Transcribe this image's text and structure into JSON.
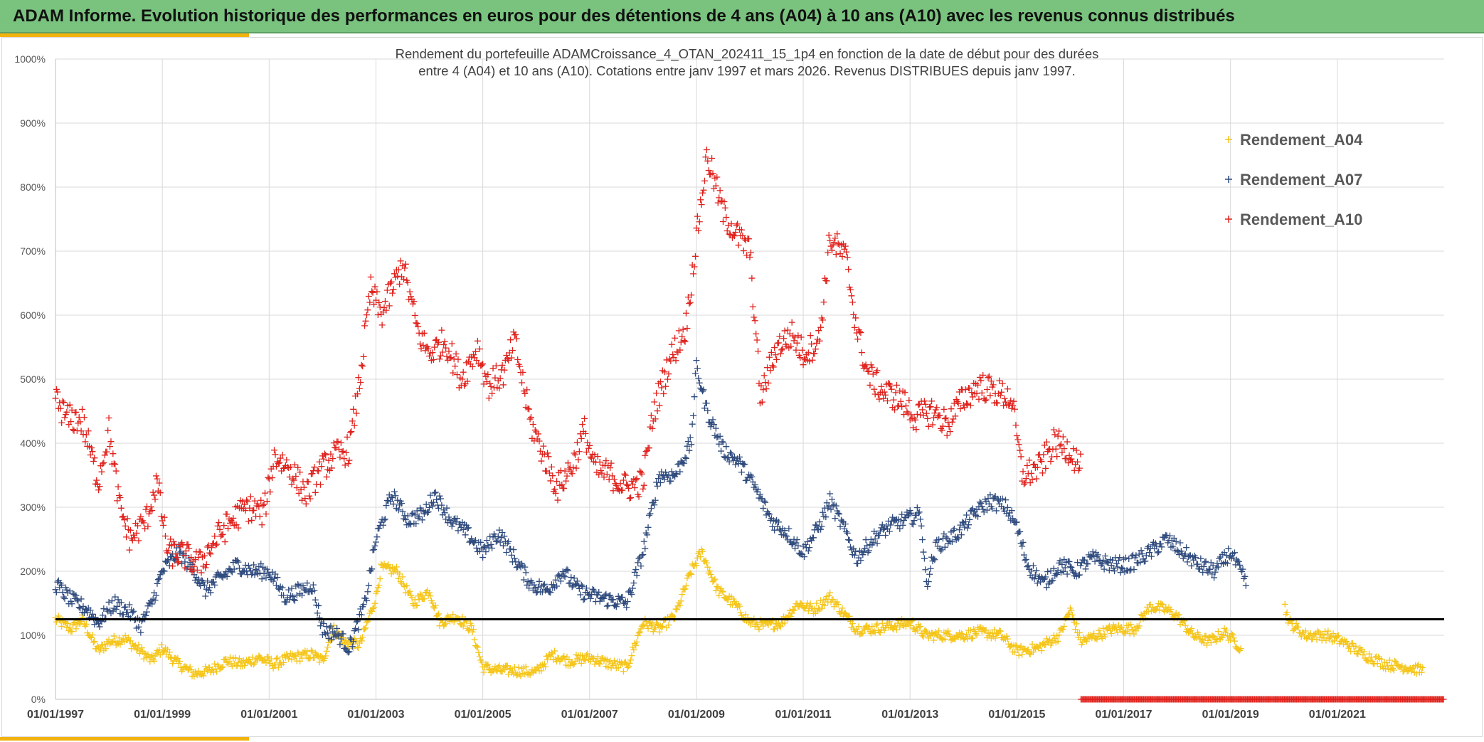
{
  "header": {
    "title": "ADAM Informe. Evolution historique des performances en euros pour des détentions de 4 ans (A04) à 10 ans (A10) avec les revenus connus distribués"
  },
  "colors": {
    "banner": "#79c37e",
    "gold": "#f2b30f",
    "a04": "#f5c518",
    "a07": "#2e4a7d",
    "a10": "#e0201b",
    "reference_line": "#000000"
  },
  "chart_data": {
    "type": "scatter",
    "title_line1": "Rendement du portefeuille ADAMCroissance_4_OTAN_202411_15_1p4  en fonction de la date de début pour des durées",
    "title_line2": "entre 4 (A04) et 10 ans (A10). Cotations entre janv 1997 et mars 2026. Revenus DISTRIBUES depuis janv 1997.",
    "xlabel": "",
    "ylabel": "",
    "x_range_years": [
      1997.0,
      2023.0
    ],
    "ylim": [
      0,
      1000
    ],
    "grid": true,
    "legend_position": "top-right",
    "y_ticks": [
      "0%",
      "100%",
      "200%",
      "300%",
      "400%",
      "500%",
      "600%",
      "700%",
      "800%",
      "900%",
      "1000%"
    ],
    "x_ticks": [
      "01/01/1997",
      "01/01/1999",
      "01/01/2001",
      "01/01/2003",
      "01/01/2005",
      "01/01/2007",
      "01/01/2009",
      "01/01/2011",
      "01/01/2013",
      "01/01/2015",
      "01/01/2017",
      "01/01/2019",
      "01/01/2021"
    ],
    "reference_line_value": 125,
    "series": [
      {
        "name": "Rendement_A04",
        "start": 1997.0,
        "end": 2022.6,
        "gap": [
          2019.2,
          2020.0
        ],
        "points": [
          [
            1997.0,
            125
          ],
          [
            1997.3,
            110
          ],
          [
            1997.5,
            125
          ],
          [
            1997.8,
            75
          ],
          [
            1998.0,
            90
          ],
          [
            1998.3,
            95
          ],
          [
            1998.6,
            75
          ],
          [
            1998.8,
            60
          ],
          [
            1999.0,
            80
          ],
          [
            1999.3,
            55
          ],
          [
            1999.6,
            40
          ],
          [
            1999.9,
            45
          ],
          [
            2000.2,
            60
          ],
          [
            2000.5,
            55
          ],
          [
            2000.8,
            65
          ],
          [
            2001.1,
            55
          ],
          [
            2001.4,
            65
          ],
          [
            2001.8,
            70
          ],
          [
            2002.0,
            60
          ],
          [
            2002.2,
            110
          ],
          [
            2002.4,
            90
          ],
          [
            2002.7,
            85
          ],
          [
            2003.0,
            160
          ],
          [
            2003.1,
            205
          ],
          [
            2003.4,
            200
          ],
          [
            2003.7,
            150
          ],
          [
            2004.0,
            170
          ],
          [
            2004.2,
            120
          ],
          [
            2004.5,
            130
          ],
          [
            2004.8,
            110
          ],
          [
            2005.0,
            50
          ],
          [
            2005.3,
            45
          ],
          [
            2005.6,
            45
          ],
          [
            2006.0,
            42
          ],
          [
            2006.3,
            70
          ],
          [
            2006.6,
            60
          ],
          [
            2007.0,
            65
          ],
          [
            2007.4,
            55
          ],
          [
            2007.7,
            50
          ],
          [
            2008.0,
            120
          ],
          [
            2008.3,
            110
          ],
          [
            2008.6,
            130
          ],
          [
            2008.9,
            200
          ],
          [
            2009.1,
            230
          ],
          [
            2009.4,
            170
          ],
          [
            2009.7,
            150
          ],
          [
            2010.0,
            120
          ],
          [
            2010.3,
            115
          ],
          [
            2010.6,
            120
          ],
          [
            2010.9,
            150
          ],
          [
            2011.2,
            140
          ],
          [
            2011.5,
            160
          ],
          [
            2011.8,
            130
          ],
          [
            2012.0,
            110
          ],
          [
            2012.3,
            110
          ],
          [
            2012.7,
            115
          ],
          [
            2013.0,
            120
          ],
          [
            2013.3,
            100
          ],
          [
            2013.7,
            100
          ],
          [
            2014.0,
            100
          ],
          [
            2014.3,
            105
          ],
          [
            2014.7,
            100
          ],
          [
            2015.0,
            75
          ],
          [
            2015.4,
            80
          ],
          [
            2015.8,
            100
          ],
          [
            2016.0,
            140
          ],
          [
            2016.2,
            90
          ],
          [
            2016.5,
            100
          ],
          [
            2016.8,
            110
          ],
          [
            2017.2,
            110
          ],
          [
            2017.5,
            145
          ],
          [
            2017.8,
            140
          ],
          [
            2018.0,
            130
          ],
          [
            2018.3,
            100
          ],
          [
            2018.6,
            90
          ],
          [
            2018.9,
            105
          ],
          [
            2019.2,
            80
          ],
          [
            2020.0,
            150
          ],
          [
            2020.1,
            120
          ],
          [
            2020.4,
            100
          ],
          [
            2020.8,
            100
          ],
          [
            2021.1,
            90
          ],
          [
            2021.5,
            70
          ],
          [
            2021.9,
            55
          ],
          [
            2022.3,
            50
          ],
          [
            2022.6,
            45
          ]
        ]
      },
      {
        "name": "Rendement_A07",
        "start": 1997.0,
        "end": 2019.3,
        "gap": null,
        "points": [
          [
            1997.0,
            180
          ],
          [
            1997.3,
            155
          ],
          [
            1997.6,
            140
          ],
          [
            1997.8,
            120
          ],
          [
            1998.1,
            150
          ],
          [
            1998.4,
            135
          ],
          [
            1998.6,
            115
          ],
          [
            1998.8,
            150
          ],
          [
            1999.0,
            200
          ],
          [
            1999.3,
            230
          ],
          [
            1999.6,
            200
          ],
          [
            1999.8,
            170
          ],
          [
            2000.1,
            190
          ],
          [
            2000.4,
            210
          ],
          [
            2000.7,
            200
          ],
          [
            2001.0,
            200
          ],
          [
            2001.3,
            160
          ],
          [
            2001.6,
            170
          ],
          [
            2001.8,
            180
          ],
          [
            2002.0,
            110
          ],
          [
            2002.3,
            100
          ],
          [
            2002.5,
            80
          ],
          [
            2002.8,
            150
          ],
          [
            2003.0,
            250
          ],
          [
            2003.3,
            320
          ],
          [
            2003.6,
            280
          ],
          [
            2003.9,
            290
          ],
          [
            2004.1,
            320
          ],
          [
            2004.4,
            280
          ],
          [
            2004.7,
            260
          ],
          [
            2005.0,
            230
          ],
          [
            2005.3,
            260
          ],
          [
            2005.6,
            220
          ],
          [
            2005.9,
            180
          ],
          [
            2006.2,
            170
          ],
          [
            2006.5,
            200
          ],
          [
            2006.8,
            170
          ],
          [
            2007.1,
            160
          ],
          [
            2007.4,
            155
          ],
          [
            2007.7,
            150
          ],
          [
            2008.0,
            230
          ],
          [
            2008.3,
            350
          ],
          [
            2008.6,
            350
          ],
          [
            2008.9,
            400
          ],
          [
            2009.0,
            520
          ],
          [
            2009.2,
            450
          ],
          [
            2009.5,
            390
          ],
          [
            2009.8,
            370
          ],
          [
            2010.1,
            330
          ],
          [
            2010.4,
            280
          ],
          [
            2010.7,
            260
          ],
          [
            2011.0,
            230
          ],
          [
            2011.3,
            270
          ],
          [
            2011.5,
            310
          ],
          [
            2011.8,
            260
          ],
          [
            2012.0,
            220
          ],
          [
            2012.3,
            250
          ],
          [
            2012.6,
            270
          ],
          [
            2012.9,
            280
          ],
          [
            2013.2,
            290
          ],
          [
            2013.3,
            180
          ],
          [
            2013.5,
            240
          ],
          [
            2013.9,
            260
          ],
          [
            2014.2,
            290
          ],
          [
            2014.5,
            310
          ],
          [
            2014.8,
            300
          ],
          [
            2015.0,
            270
          ],
          [
            2015.2,
            210
          ],
          [
            2015.5,
            180
          ],
          [
            2015.8,
            210
          ],
          [
            2016.1,
            200
          ],
          [
            2016.4,
            220
          ],
          [
            2016.8,
            210
          ],
          [
            2017.1,
            210
          ],
          [
            2017.5,
            230
          ],
          [
            2017.8,
            250
          ],
          [
            2018.1,
            230
          ],
          [
            2018.4,
            210
          ],
          [
            2018.7,
            200
          ],
          [
            2019.0,
            230
          ],
          [
            2019.3,
            180
          ]
        ]
      },
      {
        "name": "Rendement_A10",
        "start": 1997.0,
        "end": 2016.2,
        "gap": null,
        "points": [
          [
            1997.0,
            470
          ],
          [
            1997.2,
            440
          ],
          [
            1997.5,
            435
          ],
          [
            1997.8,
            340
          ],
          [
            1998.0,
            420
          ],
          [
            1998.2,
            300
          ],
          [
            1998.4,
            250
          ],
          [
            1998.7,
            280
          ],
          [
            1998.9,
            340
          ],
          [
            1999.1,
            230
          ],
          [
            1999.4,
            225
          ],
          [
            1999.7,
            210
          ],
          [
            2000.0,
            250
          ],
          [
            2000.3,
            280
          ],
          [
            2000.6,
            300
          ],
          [
            2000.9,
            290
          ],
          [
            2001.1,
            380
          ],
          [
            2001.4,
            360
          ],
          [
            2001.7,
            320
          ],
          [
            2001.9,
            350
          ],
          [
            2002.2,
            380
          ],
          [
            2002.5,
            390
          ],
          [
            2002.7,
            500
          ],
          [
            2002.9,
            640
          ],
          [
            2003.1,
            600
          ],
          [
            2003.3,
            640
          ],
          [
            2003.5,
            680
          ],
          [
            2003.8,
            570
          ],
          [
            2004.0,
            540
          ],
          [
            2004.3,
            560
          ],
          [
            2004.6,
            500
          ],
          [
            2004.9,
            550
          ],
          [
            2005.1,
            490
          ],
          [
            2005.4,
            510
          ],
          [
            2005.6,
            560
          ],
          [
            2005.9,
            430
          ],
          [
            2006.1,
            390
          ],
          [
            2006.4,
            330
          ],
          [
            2006.7,
            370
          ],
          [
            2006.9,
            420
          ],
          [
            2007.1,
            360
          ],
          [
            2007.4,
            350
          ],
          [
            2007.7,
            330
          ],
          [
            2008.0,
            340
          ],
          [
            2008.2,
            450
          ],
          [
            2008.5,
            530
          ],
          [
            2008.8,
            580
          ],
          [
            2009.0,
            720
          ],
          [
            2009.2,
            850
          ],
          [
            2009.5,
            760
          ],
          [
            2009.8,
            720
          ],
          [
            2010.0,
            700
          ],
          [
            2010.2,
            470
          ],
          [
            2010.5,
            550
          ],
          [
            2010.8,
            570
          ],
          [
            2011.0,
            540
          ],
          [
            2011.3,
            560
          ],
          [
            2011.5,
            720
          ],
          [
            2011.8,
            690
          ],
          [
            2012.0,
            580
          ],
          [
            2012.2,
            510
          ],
          [
            2012.5,
            480
          ],
          [
            2012.8,
            470
          ],
          [
            2013.1,
            440
          ],
          [
            2013.4,
            450
          ],
          [
            2013.7,
            430
          ],
          [
            2014.0,
            470
          ],
          [
            2014.3,
            490
          ],
          [
            2014.6,
            480
          ],
          [
            2014.9,
            470
          ],
          [
            2015.1,
            350
          ],
          [
            2015.4,
            360
          ],
          [
            2015.7,
            400
          ],
          [
            2016.0,
            390
          ],
          [
            2016.2,
            360
          ]
        ]
      }
    ],
    "legend": [
      {
        "label": "Rendement_A04",
        "color": "#f5c518"
      },
      {
        "label": "Rendement_A07",
        "color": "#2e4a7d"
      },
      {
        "label": "Rendement_A10",
        "color": "#e0201b"
      }
    ],
    "baseline_marker": {
      "start": 2016.2,
      "end": 2023.0,
      "value": 0,
      "color": "#e0201b"
    }
  }
}
